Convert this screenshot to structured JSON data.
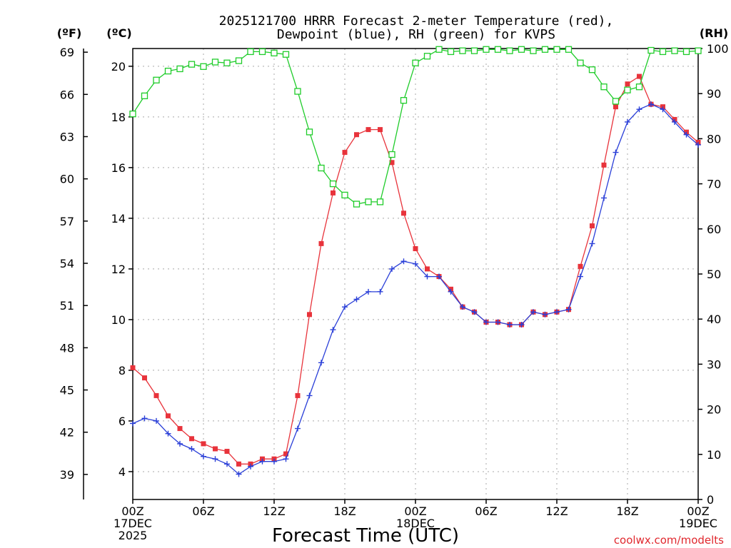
{
  "chart_data": {
    "type": "line",
    "title_lines": [
      "2025121700 HRRR Forecast 2-meter Temperature (red),",
      "Dewpoint (blue), RH (green) for KVPS"
    ],
    "xlabel": "Forecast Time (UTC)",
    "credit": "coolwx.com/modelts",
    "units": {
      "fahrenheit": "(ºF)",
      "celsius": "(ºC)",
      "rh": "(RH)"
    },
    "x_range_hours": [
      0,
      48
    ],
    "x_ticks": [
      {
        "hour": 0,
        "lines": [
          "00Z",
          "17DEC",
          "2025"
        ]
      },
      {
        "hour": 6,
        "lines": [
          "06Z"
        ]
      },
      {
        "hour": 12,
        "lines": [
          "12Z"
        ]
      },
      {
        "hour": 18,
        "lines": [
          "18Z"
        ]
      },
      {
        "hour": 24,
        "lines": [
          "00Z",
          "18DEC"
        ]
      },
      {
        "hour": 30,
        "lines": [
          "06Z"
        ]
      },
      {
        "hour": 36,
        "lines": [
          "12Z"
        ]
      },
      {
        "hour": 42,
        "lines": [
          "18Z"
        ]
      },
      {
        "hour": 48,
        "lines": [
          "00Z",
          "19DEC"
        ]
      }
    ],
    "celsius_axis": {
      "range": [
        2.9,
        20.7
      ],
      "ticks": [
        "4",
        "6",
        "8",
        "10",
        "12",
        "14",
        "16",
        "18",
        "20"
      ]
    },
    "fahrenheit_axis": {
      "ticks": [
        "39",
        "42",
        "45",
        "48",
        "51",
        "54",
        "57",
        "60",
        "63",
        "66",
        "69"
      ]
    },
    "rh_axis": {
      "range": [
        0,
        100
      ],
      "ticks": [
        "0",
        "10",
        "20",
        "30",
        "40",
        "50",
        "60",
        "70",
        "80",
        "90",
        "100"
      ]
    },
    "grid": true,
    "series": [
      {
        "key": "temperature",
        "axis": "celsius",
        "color": "#e8333b",
        "marker": "filled-square",
        "values": [
          8.1,
          7.7,
          7.0,
          6.2,
          5.7,
          5.3,
          5.1,
          4.9,
          4.8,
          4.3,
          4.3,
          4.5,
          4.5,
          4.7,
          7.0,
          10.2,
          13.0,
          15.0,
          16.6,
          17.3,
          17.5,
          17.5,
          16.2,
          14.2,
          12.8,
          12.0,
          11.7,
          11.2,
          10.5,
          10.3,
          9.9,
          9.9,
          9.8,
          9.8,
          10.3,
          10.2,
          10.3,
          10.4,
          12.1,
          13.7,
          16.1,
          18.4,
          19.3,
          19.6,
          18.5,
          18.4,
          17.9,
          17.4,
          17.0
        ]
      },
      {
        "key": "dewpoint",
        "axis": "celsius",
        "color": "#2a3fd8",
        "marker": "plus",
        "values": [
          5.9,
          6.1,
          6.0,
          5.5,
          5.1,
          4.9,
          4.6,
          4.5,
          4.3,
          3.9,
          4.2,
          4.4,
          4.4,
          4.5,
          5.7,
          7.0,
          8.3,
          9.6,
          10.5,
          10.8,
          11.1,
          11.1,
          12.0,
          12.3,
          12.2,
          11.7,
          11.7,
          11.1,
          10.5,
          10.3,
          9.9,
          9.9,
          9.8,
          9.8,
          10.3,
          10.2,
          10.3,
          10.4,
          11.7,
          13.0,
          14.8,
          16.6,
          17.8,
          18.3,
          18.5,
          18.3,
          17.8,
          17.3,
          16.9
        ]
      },
      {
        "key": "rh",
        "axis": "rh",
        "color": "#1fcc2a",
        "marker": "open-square",
        "values": [
          85.5,
          89.5,
          93.0,
          95.0,
          95.5,
          96.5,
          96.0,
          97.0,
          96.8,
          97.3,
          99.3,
          99.3,
          99.0,
          98.7,
          90.5,
          81.5,
          73.5,
          70.0,
          67.5,
          65.5,
          66.0,
          66.0,
          76.5,
          88.5,
          96.8,
          98.3,
          99.8,
          99.3,
          99.5,
          99.5,
          99.8,
          99.8,
          99.5,
          99.8,
          99.5,
          99.8,
          99.8,
          99.8,
          96.8,
          95.3,
          91.5,
          88.3,
          90.8,
          91.5,
          99.6,
          99.3,
          99.5,
          99.3,
          99.5
        ]
      }
    ]
  }
}
